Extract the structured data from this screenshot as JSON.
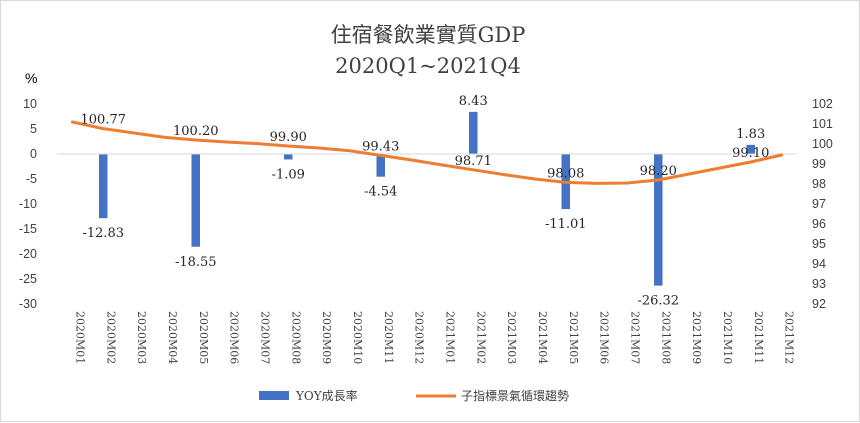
{
  "chart_data": {
    "type": "bar+line",
    "title": "住宿餐飲業實質GDP",
    "subtitle": "2020Q1~2021Q4",
    "left_axis_unit": "%",
    "categories": [
      "2020M01",
      "2020M02",
      "2020M03",
      "2020M04",
      "2020M05",
      "2020M06",
      "2020M07",
      "2020M08",
      "2020M09",
      "2020M10",
      "2020M11",
      "2020M12",
      "2021M01",
      "2021M02",
      "2021M03",
      "2021M04",
      "2021M05",
      "2021M06",
      "2021M07",
      "2021M08",
      "2021M09",
      "2021M10",
      "2021M11",
      "2021M12"
    ],
    "left_axis": {
      "min": -30,
      "max": 10,
      "step": 5,
      "ticks": [
        "10",
        "5",
        "0",
        "-5",
        "-10",
        "-15",
        "-20",
        "-25",
        "-30"
      ]
    },
    "right_axis": {
      "min": 92,
      "max": 102,
      "step": 1,
      "ticks": [
        "102",
        "101",
        "100",
        "99",
        "98",
        "97",
        "96",
        "95",
        "94",
        "93",
        "92"
      ]
    },
    "series": [
      {
        "name": "YOY成長率",
        "type": "bar",
        "axis": "left",
        "color": "#4472c4",
        "values": [
          null,
          -12.83,
          null,
          null,
          -18.55,
          null,
          null,
          -1.09,
          null,
          null,
          -4.54,
          null,
          null,
          8.43,
          null,
          null,
          -11.01,
          null,
          null,
          -26.32,
          null,
          null,
          1.83,
          null
        ],
        "labels": [
          "",
          "-12.83",
          "",
          "",
          "-18.55",
          "",
          "",
          "-1.09",
          "",
          "",
          "-4.54",
          "",
          "",
          "8.43",
          "",
          "",
          "-11.01",
          "",
          "",
          "-26.32",
          "",
          "",
          "1.83",
          ""
        ]
      },
      {
        "name": "子指標景氣循環趨勢",
        "type": "line",
        "axis": "right",
        "color": "#ed7d31",
        "values": [
          101.1,
          100.77,
          100.55,
          100.33,
          100.2,
          100.1,
          100.02,
          99.9,
          99.8,
          99.66,
          99.43,
          99.2,
          98.95,
          98.71,
          98.47,
          98.25,
          98.08,
          98.03,
          98.05,
          98.2,
          98.5,
          98.8,
          99.1,
          99.45
        ],
        "labels": [
          "",
          "100.77",
          "",
          "",
          "100.20",
          "",
          "",
          "99.90",
          "",
          "",
          "99.43",
          "",
          "",
          "98.71",
          "",
          "",
          "98.08",
          "",
          "",
          "98.20",
          "",
          "",
          "99.10",
          ""
        ]
      }
    ],
    "legend_position": "bottom",
    "grid": false
  }
}
